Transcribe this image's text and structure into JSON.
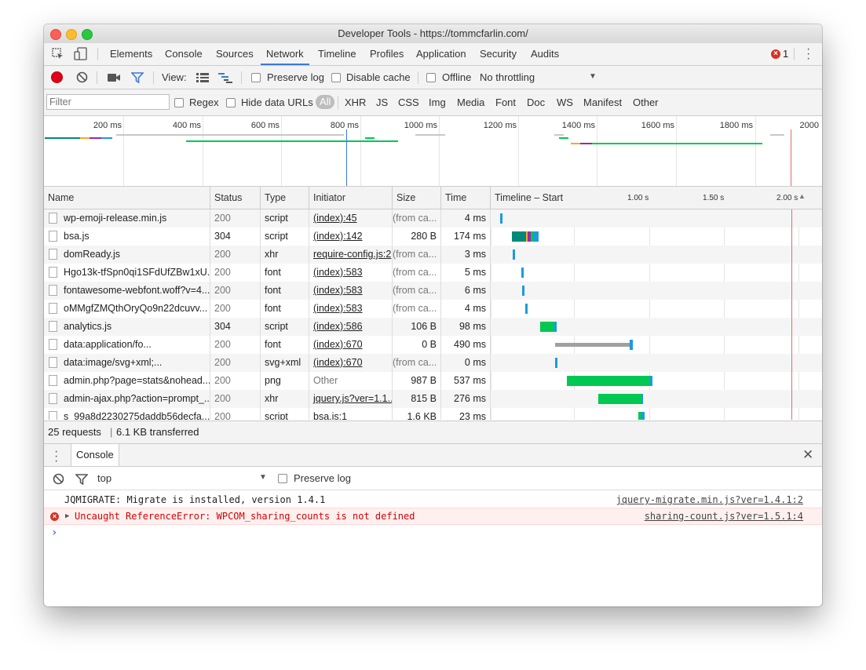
{
  "window": {
    "title": "Developer Tools - https://tommcfarlin.com/"
  },
  "tabs": [
    "Elements",
    "Console",
    "Sources",
    "Network",
    "Timeline",
    "Profiles",
    "Application",
    "Security",
    "Audits"
  ],
  "active_tab": "Network",
  "error_count": "1",
  "toolbar": {
    "view_label": "View:",
    "preserve_log": "Preserve log",
    "disable_cache": "Disable cache",
    "offline": "Offline",
    "throttling": "No throttling"
  },
  "filterbar": {
    "filter_placeholder": "Filter",
    "regex": "Regex",
    "hide_data_urls": "Hide data URLs",
    "types": [
      "All",
      "XHR",
      "JS",
      "CSS",
      "Img",
      "Media",
      "Font",
      "Doc",
      "WS",
      "Manifest",
      "Other"
    ]
  },
  "overview": {
    "ticks": [
      "200 ms",
      "400 ms",
      "600 ms",
      "800 ms",
      "1000 ms",
      "1200 ms",
      "1400 ms",
      "1600 ms",
      "1800 ms",
      "2000"
    ]
  },
  "table": {
    "headers": {
      "name": "Name",
      "status": "Status",
      "type": "Type",
      "initiator": "Initiator",
      "size": "Size",
      "time": "Time",
      "timeline": "Timeline – Start Time"
    },
    "timeline_scale": [
      "1.00 s",
      "1.50 s",
      "2.00 s"
    ],
    "rows": [
      {
        "name": "wp-emoji-release.min.js",
        "status": "200",
        "type": "script",
        "initiator": "(index):45",
        "size": "(from ca...",
        "time": "4 ms"
      },
      {
        "name": "bsa.js",
        "status": "304",
        "type": "script",
        "initiator": "(index):142",
        "size": "280 B",
        "time": "174 ms"
      },
      {
        "name": "domReady.js",
        "status": "200",
        "type": "xhr",
        "initiator": "require-config.js:2",
        "size": "(from ca...",
        "time": "3 ms"
      },
      {
        "name": "Hgo13k-tfSpn0qi1SFdUfZBw1xU...",
        "status": "200",
        "type": "font",
        "initiator": "(index):583",
        "size": "(from ca...",
        "time": "5 ms"
      },
      {
        "name": "fontawesome-webfont.woff?v=4...",
        "status": "200",
        "type": "font",
        "initiator": "(index):583",
        "size": "(from ca...",
        "time": "6 ms"
      },
      {
        "name": "oMMgfZMQthOryQo9n22dcuvv...",
        "status": "200",
        "type": "font",
        "initiator": "(index):583",
        "size": "(from ca...",
        "time": "4 ms"
      },
      {
        "name": "analytics.js",
        "status": "304",
        "type": "script",
        "initiator": "(index):586",
        "size": "106 B",
        "time": "98 ms"
      },
      {
        "name": "data:application/fo...",
        "status": "200",
        "type": "font",
        "initiator": "(index):670",
        "size": "0 B",
        "time": "490 ms"
      },
      {
        "name": "data:image/svg+xml;...",
        "status": "200",
        "type": "svg+xml",
        "initiator": "(index):670",
        "size": "(from ca...",
        "time": "0 ms"
      },
      {
        "name": "admin.php?page=stats&nohead...",
        "status": "200",
        "type": "png",
        "initiator": "Other",
        "size": "987 B",
        "time": "537 ms"
      },
      {
        "name": "admin-ajax.php?action=prompt_...",
        "status": "200",
        "type": "xhr",
        "initiator": "jquery.js?ver=1.1...",
        "size": "815 B",
        "time": "276 ms"
      },
      {
        "name": "s_99a8d2230275daddb56decfa...",
        "status": "200",
        "type": "script",
        "initiator": "bsa.js:1",
        "size": "1.6 KB",
        "time": "23 ms"
      }
    ]
  },
  "status": {
    "requests": "25 requests",
    "transferred": "6.1 KB transferred"
  },
  "drawer": {
    "tab": "Console"
  },
  "console": {
    "context": "top",
    "preserve_log": "Preserve log",
    "messages": [
      {
        "level": "log",
        "text": "JQMIGRATE: Migrate is installed, version 1.4.1",
        "source": "jquery-migrate.min.js?ver=1.4.1:2"
      },
      {
        "level": "error",
        "text": "Uncaught ReferenceError: WPCOM_sharing_counts is not defined",
        "source": "sharing-count.js?ver=1.5.1:4"
      }
    ],
    "prompt": "›"
  },
  "colors": {
    "accent": "#3879d9",
    "error": "#d93025",
    "receive": "#1a9bdc",
    "wait": "#00c853",
    "stalled": "#a0a0a0",
    "teal": "#00897b",
    "purple": "#9c27b0",
    "orange": "#f9a825"
  }
}
